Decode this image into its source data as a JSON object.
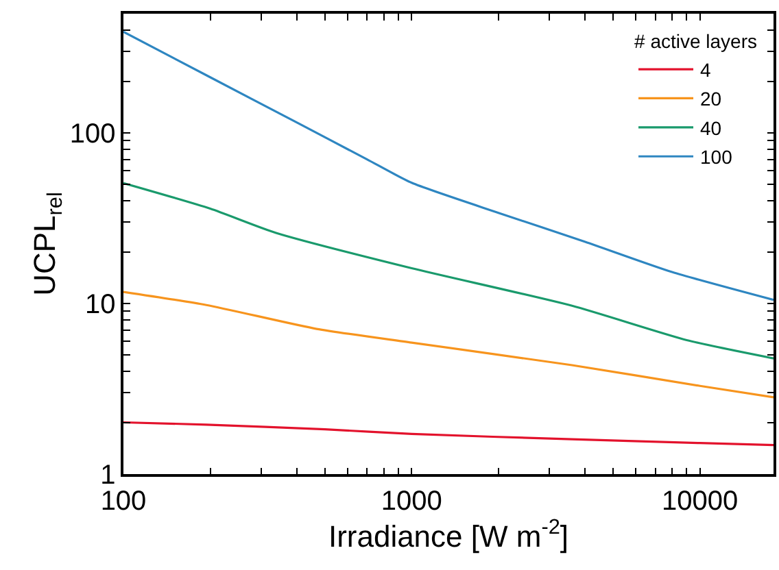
{
  "chart_data": {
    "type": "line",
    "xlabel": "Irradiance [W m$^{-2}$]",
    "ylabel": "UCPL$_{rel}$",
    "legend_title": "# active layers",
    "log": "xy",
    "legend": "top right",
    "marker": "none",
    "line_style": "solid",
    "xlim": [
      100,
      18000
    ],
    "ylim": [
      1,
      500
    ],
    "xticks": [
      100,
      {
        "value": 200,
        "label": null
      },
      {
        "value": 300,
        "label": null
      },
      {
        "value": 400,
        "label": null
      },
      {
        "value": 500,
        "label": null
      },
      {
        "value": 600,
        "label": null
      },
      {
        "value": 700,
        "label": null
      },
      {
        "value": 800,
        "label": null
      },
      {
        "value": 900,
        "label": null
      },
      1000,
      {
        "value": 2000,
        "label": null
      },
      {
        "value": 3000,
        "label": null
      },
      {
        "value": 4000,
        "label": null
      },
      {
        "value": 5000,
        "label": null
      },
      {
        "value": 6000,
        "label": null
      },
      {
        "value": 7000,
        "label": null
      },
      {
        "value": 8000,
        "label": null
      },
      {
        "value": 9000,
        "label": null
      },
      10000
    ],
    "yticks": [
      1,
      {
        "value": 2,
        "label": null
      },
      {
        "value": 3,
        "label": null
      },
      {
        "value": 4,
        "label": null
      },
      {
        "value": 5,
        "label": null
      },
      {
        "value": 6,
        "label": null
      },
      {
        "value": 7,
        "label": null
      },
      {
        "value": 8,
        "label": null
      },
      {
        "value": 9,
        "label": null
      },
      10,
      {
        "value": 20,
        "label": null
      },
      {
        "value": 30,
        "label": null
      },
      {
        "value": 40,
        "label": null
      },
      {
        "value": 50,
        "label": null
      },
      {
        "value": 60,
        "label": null
      },
      {
        "value": 70,
        "label": null
      },
      {
        "value": 80,
        "label": null
      },
      {
        "value": 90,
        "label": null
      },
      100,
      {
        "value": 200,
        "label": null
      },
      {
        "value": 300,
        "label": null
      },
      {
        "value": 400,
        "label": null
      }
    ],
    "series": [
      {
        "name": "4",
        "color": "#e3122c",
        "x": [
          100,
          194,
          500,
          1000,
          3600,
          10000,
          18000
        ],
        "values": [
          2.01,
          1.95,
          1.83,
          1.72,
          1.6,
          1.52,
          1.48
        ]
      },
      {
        "name": "20",
        "color": "#f7941d",
        "x": [
          100,
          194,
          468,
          1000,
          3600,
          10000,
          18000
        ],
        "values": [
          11.7,
          9.8,
          7.1,
          5.9,
          4.35,
          3.29,
          2.82
        ]
      },
      {
        "name": "40",
        "color": "#1a9a6c",
        "x": [
          100,
          200,
          337,
          1000,
          3600,
          9000,
          18000
        ],
        "values": [
          50.8,
          36,
          26,
          16.1,
          9.7,
          6.1,
          4.77
        ]
      },
      {
        "name": "100",
        "color": "#2e86c1",
        "x": [
          100,
          200,
          400,
          700,
          1000,
          2000,
          4000,
          8000,
          18000
        ],
        "values": [
          392,
          212,
          115,
          70,
          51,
          34,
          23,
          15.3,
          10.5
        ]
      }
    ]
  }
}
